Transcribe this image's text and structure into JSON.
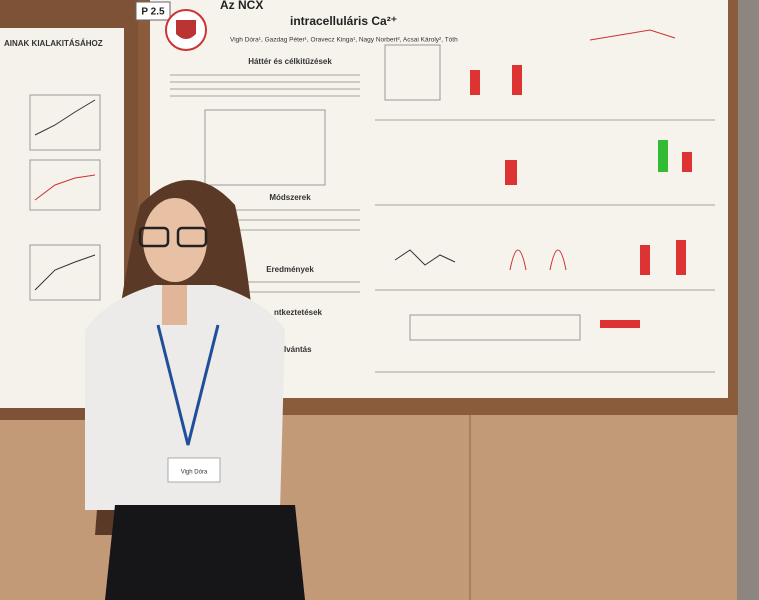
{
  "board_label": "P 2.5",
  "poster": {
    "title_line1": "Az NCX",
    "title_line2": "intracelluláris Ca²⁺",
    "authors": "Vigh Dóra¹, Gazdag Péter¹, Oravecz Kinga¹, Nagy Norbert², Acsai Károly², Tóth",
    "sections": [
      "Háttér és célkitűzések",
      "Módszerek",
      "Eredmények",
      "ntkeztetések",
      "nyilvántás"
    ]
  },
  "left_poster": {
    "title": "AINAK KIALAKITÁSÁHOZ"
  },
  "badge": {
    "name": "Vigh Dóra"
  }
}
